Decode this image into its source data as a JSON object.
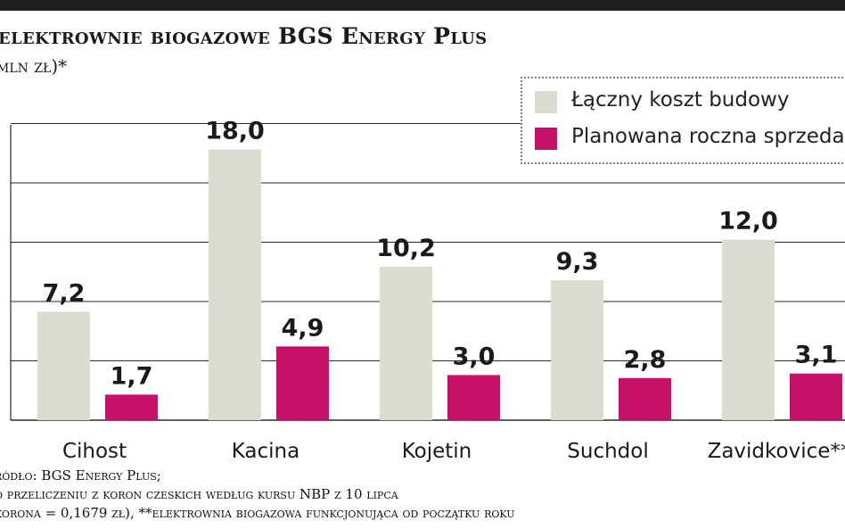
{
  "header": {
    "title": "elektrownie biogazowe BGS Energy Plus",
    "subtitle": "mln zł)*"
  },
  "legend": {
    "items": [
      {
        "label": "Łączny koszt budowy",
        "color": "#dcdbd0"
      },
      {
        "label": "Planowana roczna sprzedaż",
        "color": "#c8106b"
      }
    ]
  },
  "footer": {
    "lines": [
      "ródło: BGS Energy Plus;",
      "o przeliczeniu z koron czeskich według kursu NBP z 10 lipca",
      "korona  = 0,1679 zł), **elektrownia biogazowa funkcjonująca od początku roku"
    ]
  },
  "chart_data": {
    "type": "bar",
    "title": "elektrownie biogazowe BGS Energy Plus",
    "subtitle": "mln zł)*",
    "categories": [
      "Cihost",
      "Kacina",
      "Kojetin",
      "Suchdol",
      "Zavidkovice**"
    ],
    "series": [
      {
        "name": "Łączny koszt budowy",
        "color": "#dcdbd0",
        "values": [
          7.2,
          18.0,
          10.2,
          9.3,
          12.0
        ],
        "labels": [
          "7,2",
          "18,0",
          "10,2",
          "9,3",
          "12,0"
        ]
      },
      {
        "name": "Planowana roczna sprzedaż",
        "color": "#c8106b",
        "values": [
          1.7,
          4.9,
          3.0,
          2.8,
          3.1
        ],
        "labels": [
          "1,7",
          "4,9",
          "3,0",
          "2,8",
          "3,1"
        ]
      }
    ],
    "ylim": [
      0,
      22
    ],
    "grid": true,
    "legend_position": "top-right"
  }
}
